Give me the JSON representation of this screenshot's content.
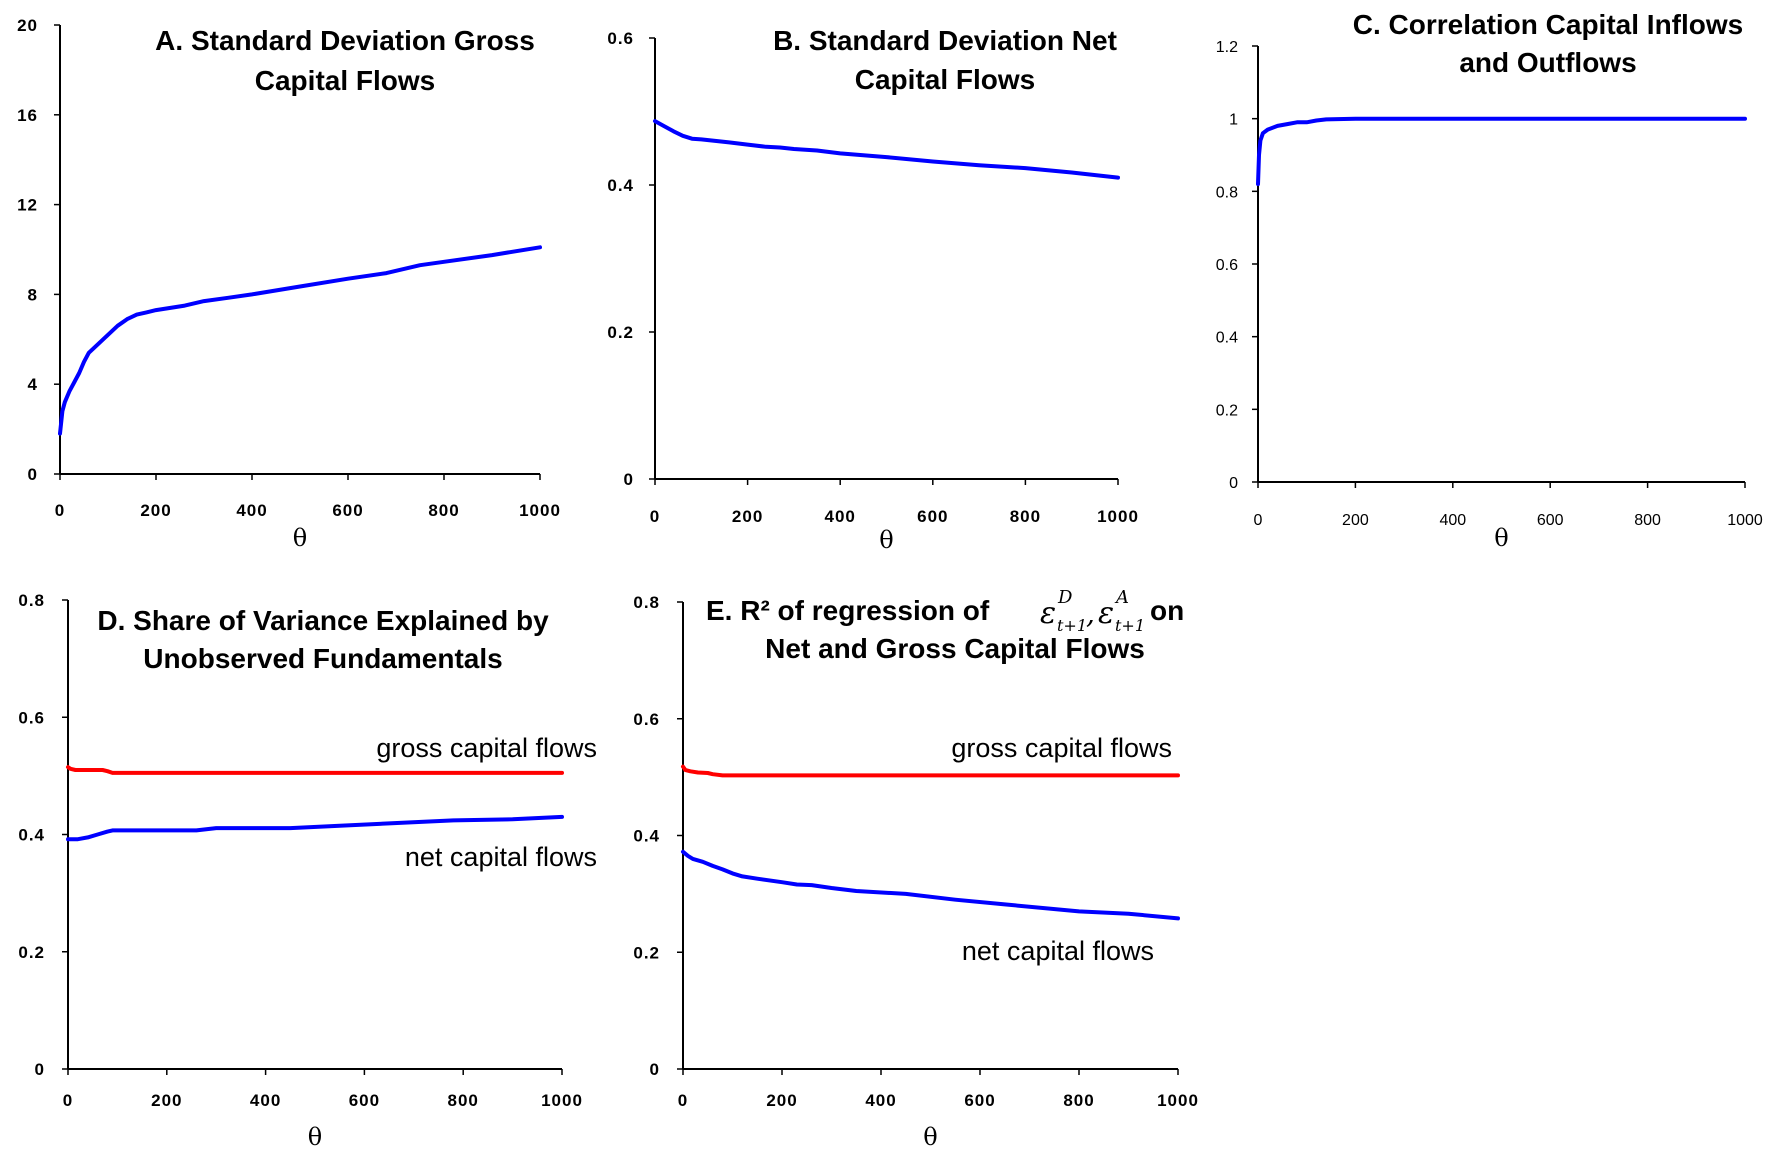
{
  "chart_data": [
    {
      "id": "A",
      "type": "line",
      "title": "A.  Standard Deviation Gross Capital Flows",
      "title_lines": [
        "A.  Standard Deviation Gross",
        "Capital Flows"
      ],
      "xlabel": "θ",
      "ylabel": "",
      "xlim": [
        0,
        1000
      ],
      "ylim": [
        0,
        20
      ],
      "xticks": [
        "0",
        "200",
        "400",
        "600",
        "800",
        "1000"
      ],
      "yticks": [
        "0",
        "4",
        "8",
        "12",
        "16",
        "20"
      ],
      "series": [
        {
          "color": "#0000ff",
          "x": [
            0,
            5,
            10,
            20,
            30,
            40,
            50,
            60,
            70,
            80,
            100,
            120,
            140,
            160,
            180,
            200,
            260,
            300,
            350,
            400,
            500,
            600,
            680,
            750,
            800,
            900,
            1000
          ],
          "y": [
            1.8,
            2.8,
            3.2,
            3.7,
            4.1,
            4.5,
            5.0,
            5.4,
            5.6,
            5.8,
            6.2,
            6.6,
            6.9,
            7.1,
            7.2,
            7.3,
            7.5,
            7.7,
            7.85,
            8.0,
            8.35,
            8.7,
            8.95,
            9.3,
            9.45,
            9.75,
            10.1
          ]
        }
      ]
    },
    {
      "id": "B",
      "type": "line",
      "title": "B.  Standard Deviation Net Capital Flows",
      "title_lines": [
        "B.  Standard Deviation Net",
        "Capital Flows"
      ],
      "xlabel": "θ",
      "ylabel": "",
      "xlim": [
        0,
        1000
      ],
      "ylim": [
        0,
        0.6
      ],
      "xticks": [
        "0",
        "200",
        "400",
        "600",
        "800",
        "1000"
      ],
      "yticks": [
        "0",
        "0.2",
        "0.4",
        "0.6"
      ],
      "series": [
        {
          "color": "#0000ff",
          "x": [
            0,
            20,
            40,
            60,
            80,
            100,
            130,
            160,
            200,
            240,
            270,
            300,
            350,
            400,
            500,
            600,
            700,
            800,
            900,
            1000
          ],
          "y": [
            0.487,
            0.48,
            0.473,
            0.467,
            0.463,
            0.462,
            0.46,
            0.458,
            0.455,
            0.452,
            0.451,
            0.449,
            0.447,
            0.443,
            0.438,
            0.432,
            0.427,
            0.423,
            0.417,
            0.41
          ]
        }
      ]
    },
    {
      "id": "C",
      "type": "line",
      "title": "C.  Correlation Capital Inflows and Outflows",
      "title_lines": [
        "C.  Correlation Capital Inflows",
        "and Outflows"
      ],
      "xlabel": "θ",
      "ylabel": "",
      "xlim": [
        0,
        1000
      ],
      "ylim": [
        0,
        1.2
      ],
      "xticks": [
        "0",
        "200",
        "400",
        "600",
        "800",
        "1000"
      ],
      "yticks": [
        "0",
        "0.2",
        "0.4",
        "0.6",
        "0.8",
        "1",
        "1.2"
      ],
      "series": [
        {
          "color": "#0000ff",
          "x": [
            0,
            2,
            5,
            10,
            20,
            40,
            60,
            80,
            100,
            120,
            140,
            200,
            400,
            600,
            800,
            1000
          ],
          "y": [
            0.82,
            0.9,
            0.94,
            0.96,
            0.97,
            0.98,
            0.985,
            0.99,
            0.99,
            0.995,
            0.998,
            1.0,
            1.0,
            1.0,
            1.0,
            1.0
          ]
        }
      ]
    },
    {
      "id": "D",
      "type": "line",
      "title": "D. Share of Variance Explained by Unobserved Fundamentals",
      "title_lines": [
        "D. Share of Variance Explained by",
        "Unobserved Fundamentals"
      ],
      "xlabel": "θ",
      "ylabel": "",
      "xlim": [
        0,
        1000
      ],
      "ylim": [
        0,
        0.8
      ],
      "xticks": [
        "0",
        "200",
        "400",
        "600",
        "800",
        "1000"
      ],
      "yticks": [
        "0",
        "0.2",
        "0.4",
        "0.6",
        "0.8"
      ],
      "series": [
        {
          "name": "gross capital flows",
          "color": "#ff0000",
          "x": [
            0,
            5,
            15,
            40,
            70,
            80,
            90,
            200,
            400,
            600,
            800,
            1000
          ],
          "y": [
            0.515,
            0.512,
            0.51,
            0.51,
            0.51,
            0.508,
            0.505,
            0.505,
            0.505,
            0.505,
            0.505,
            0.505
          ]
        },
        {
          "name": "net capital flows",
          "color": "#0000ff",
          "x": [
            0,
            20,
            40,
            60,
            80,
            90,
            150,
            200,
            260,
            300,
            450,
            550,
            650,
            780,
            900,
            1000
          ],
          "y": [
            0.392,
            0.392,
            0.395,
            0.4,
            0.405,
            0.407,
            0.407,
            0.407,
            0.407,
            0.411,
            0.411,
            0.415,
            0.419,
            0.424,
            0.426,
            0.43
          ]
        }
      ]
    },
    {
      "id": "E",
      "type": "line",
      "title": "E. R² of regression of ε_{t+1}^D, ε_{t+1}^A on Net and Gross Capital Flows",
      "xlabel": "θ",
      "ylabel": "",
      "xlim": [
        0,
        1000
      ],
      "ylim": [
        0,
        0.8
      ],
      "xticks": [
        "0",
        "200",
        "400",
        "600",
        "800",
        "1000"
      ],
      "yticks": [
        "0",
        "0.2",
        "0.4",
        "0.6",
        "0.8"
      ],
      "series": [
        {
          "name": "gross capital flows",
          "color": "#ff0000",
          "x": [
            0,
            5,
            15,
            30,
            50,
            60,
            80,
            200,
            400,
            600,
            800,
            1000
          ],
          "y": [
            0.518,
            0.512,
            0.51,
            0.508,
            0.507,
            0.505,
            0.503,
            0.503,
            0.503,
            0.503,
            0.503,
            0.503
          ]
        },
        {
          "name": "net capital flows",
          "color": "#0000ff",
          "x": [
            0,
            10,
            20,
            40,
            60,
            80,
            100,
            120,
            150,
            200,
            230,
            260,
            300,
            350,
            450,
            550,
            650,
            800,
            900,
            1000
          ],
          "y": [
            0.372,
            0.365,
            0.36,
            0.355,
            0.348,
            0.342,
            0.335,
            0.33,
            0.326,
            0.32,
            0.316,
            0.315,
            0.31,
            0.305,
            0.3,
            0.29,
            0.282,
            0.27,
            0.266,
            0.258
          ]
        }
      ]
    }
  ],
  "panel_e_title": {
    "prefix": "E. R² of regression of",
    "eps1_sup": "D",
    "eps2_sup": "A",
    "eps_sub": "t+1",
    "comma": ",",
    "suffix": "on",
    "line2": "Net and Gross Capital Flows"
  },
  "annotations": {
    "gross": "gross capital flows",
    "net": "net capital flows"
  }
}
